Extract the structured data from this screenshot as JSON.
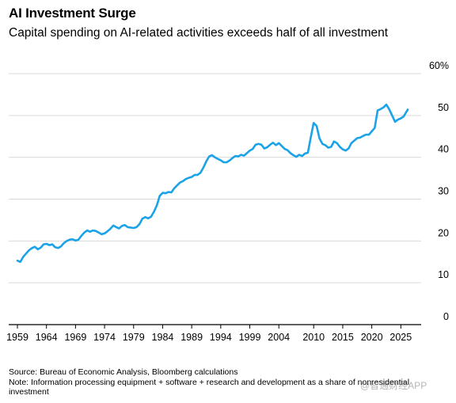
{
  "chart_data": {
    "type": "line",
    "title": "AI Investment Surge",
    "subtitle": "Capital spending on AI-related activities exceeds half of all investment",
    "xlabel": "",
    "ylabel": "",
    "xlim": [
      1957.5,
      2028.5
    ],
    "ylim": [
      0,
      60
    ],
    "x_ticks": [
      "1959",
      "1964",
      "1969",
      "1974",
      "1979",
      "1984",
      "1989",
      "1994",
      "1999",
      "2004",
      "2010",
      "2015",
      "2020",
      "2025"
    ],
    "y_ticks": [
      {
        "value": 60,
        "label": "60%"
      },
      {
        "value": 50,
        "label": "50"
      },
      {
        "value": 40,
        "label": "40"
      },
      {
        "value": 30,
        "label": "30"
      },
      {
        "value": 20,
        "label": "20"
      },
      {
        "value": 10,
        "label": "10"
      },
      {
        "value": 0,
        "label": "0"
      }
    ],
    "grid": true,
    "line_color": "#1aa3e8",
    "series": [
      {
        "name": "",
        "points": [
          [
            1959.0,
            15.3
          ],
          [
            1959.5,
            15.0
          ],
          [
            1960.0,
            16.2
          ],
          [
            1960.5,
            17.0
          ],
          [
            1961.0,
            17.8
          ],
          [
            1961.5,
            18.3
          ],
          [
            1962.0,
            18.6
          ],
          [
            1962.5,
            18.0
          ],
          [
            1963.0,
            18.4
          ],
          [
            1963.5,
            19.2
          ],
          [
            1964.0,
            19.3
          ],
          [
            1964.5,
            19.0
          ],
          [
            1965.0,
            19.2
          ],
          [
            1965.5,
            18.5
          ],
          [
            1966.0,
            18.3
          ],
          [
            1966.5,
            18.7
          ],
          [
            1967.0,
            19.5
          ],
          [
            1967.5,
            20.0
          ],
          [
            1968.0,
            20.3
          ],
          [
            1968.5,
            20.4
          ],
          [
            1969.0,
            20.1
          ],
          [
            1969.5,
            20.3
          ],
          [
            1970.0,
            21.2
          ],
          [
            1970.5,
            22.0
          ],
          [
            1971.0,
            22.5
          ],
          [
            1971.5,
            22.2
          ],
          [
            1972.0,
            22.5
          ],
          [
            1972.5,
            22.4
          ],
          [
            1973.0,
            22.0
          ],
          [
            1973.5,
            21.6
          ],
          [
            1974.0,
            21.8
          ],
          [
            1974.5,
            22.3
          ],
          [
            1975.0,
            22.9
          ],
          [
            1975.5,
            23.7
          ],
          [
            1976.0,
            23.3
          ],
          [
            1976.5,
            23.0
          ],
          [
            1977.0,
            23.6
          ],
          [
            1977.5,
            23.8
          ],
          [
            1978.0,
            23.3
          ],
          [
            1978.5,
            23.2
          ],
          [
            1979.0,
            23.1
          ],
          [
            1979.5,
            23.3
          ],
          [
            1980.0,
            24.0
          ],
          [
            1980.5,
            25.3
          ],
          [
            1981.0,
            25.7
          ],
          [
            1981.5,
            25.4
          ],
          [
            1982.0,
            25.8
          ],
          [
            1982.5,
            27.0
          ],
          [
            1983.0,
            28.5
          ],
          [
            1983.5,
            30.8
          ],
          [
            1984.0,
            31.5
          ],
          [
            1984.5,
            31.4
          ],
          [
            1985.0,
            31.7
          ],
          [
            1985.5,
            31.6
          ],
          [
            1986.0,
            32.6
          ],
          [
            1986.5,
            33.3
          ],
          [
            1987.0,
            34.0
          ],
          [
            1987.5,
            34.3
          ],
          [
            1988.0,
            34.8
          ],
          [
            1988.5,
            35.1
          ],
          [
            1989.0,
            35.3
          ],
          [
            1989.5,
            35.8
          ],
          [
            1990.0,
            35.8
          ],
          [
            1990.5,
            36.3
          ],
          [
            1991.0,
            37.5
          ],
          [
            1991.5,
            39.0
          ],
          [
            1992.0,
            40.2
          ],
          [
            1992.5,
            40.5
          ],
          [
            1993.0,
            40.0
          ],
          [
            1993.5,
            39.6
          ],
          [
            1994.0,
            39.3
          ],
          [
            1994.5,
            38.8
          ],
          [
            1995.0,
            38.8
          ],
          [
            1995.5,
            39.2
          ],
          [
            1996.0,
            39.8
          ],
          [
            1996.5,
            40.3
          ],
          [
            1997.0,
            40.2
          ],
          [
            1997.5,
            40.6
          ],
          [
            1998.0,
            40.4
          ],
          [
            1998.5,
            41.0
          ],
          [
            1999.0,
            41.6
          ],
          [
            1999.5,
            42.0
          ],
          [
            2000.0,
            43.0
          ],
          [
            2000.5,
            43.2
          ],
          [
            2001.0,
            43.0
          ],
          [
            2001.5,
            42.1
          ],
          [
            2002.0,
            42.4
          ],
          [
            2002.5,
            43.0
          ],
          [
            2003.0,
            43.5
          ],
          [
            2003.5,
            42.9
          ],
          [
            2004.0,
            43.4
          ],
          [
            2004.5,
            42.7
          ],
          [
            2005.0,
            42.0
          ],
          [
            2005.5,
            41.7
          ],
          [
            2006.0,
            41.0
          ],
          [
            2006.5,
            40.5
          ],
          [
            2007.0,
            40.1
          ],
          [
            2007.5,
            40.6
          ],
          [
            2008.0,
            40.3
          ],
          [
            2008.5,
            40.9
          ],
          [
            2009.0,
            41.1
          ],
          [
            2009.5,
            44.8
          ],
          [
            2010.0,
            48.2
          ],
          [
            2010.5,
            47.5
          ],
          [
            2011.0,
            44.5
          ],
          [
            2011.5,
            43.2
          ],
          [
            2012.0,
            42.9
          ],
          [
            2012.5,
            42.3
          ],
          [
            2013.0,
            42.5
          ],
          [
            2013.5,
            43.8
          ],
          [
            2014.0,
            43.4
          ],
          [
            2014.5,
            42.5
          ],
          [
            2015.0,
            41.9
          ],
          [
            2015.5,
            41.6
          ],
          [
            2016.0,
            42.1
          ],
          [
            2016.5,
            43.4
          ],
          [
            2017.0,
            44.0
          ],
          [
            2017.5,
            44.6
          ],
          [
            2018.0,
            44.7
          ],
          [
            2018.5,
            45.1
          ],
          [
            2019.0,
            45.4
          ],
          [
            2019.5,
            45.4
          ],
          [
            2020.0,
            46.2
          ],
          [
            2020.5,
            47.0
          ],
          [
            2021.0,
            51.2
          ],
          [
            2021.5,
            51.5
          ],
          [
            2022.0,
            51.9
          ],
          [
            2022.5,
            52.6
          ],
          [
            2023.0,
            51.5
          ],
          [
            2023.5,
            50.0
          ],
          [
            2024.0,
            48.5
          ],
          [
            2024.5,
            49.0
          ],
          [
            2025.0,
            49.3
          ],
          [
            2025.5,
            49.8
          ],
          [
            2026.0,
            51.0
          ],
          [
            2026.2,
            51.4
          ]
        ]
      }
    ]
  },
  "footer": {
    "source": "Source: Bureau of Economic Analysis, Bloomberg calculations",
    "note": "Note: Information processing equipment + software + research and development as a share of nonresidential investment"
  },
  "watermark": "@智通财经APP"
}
